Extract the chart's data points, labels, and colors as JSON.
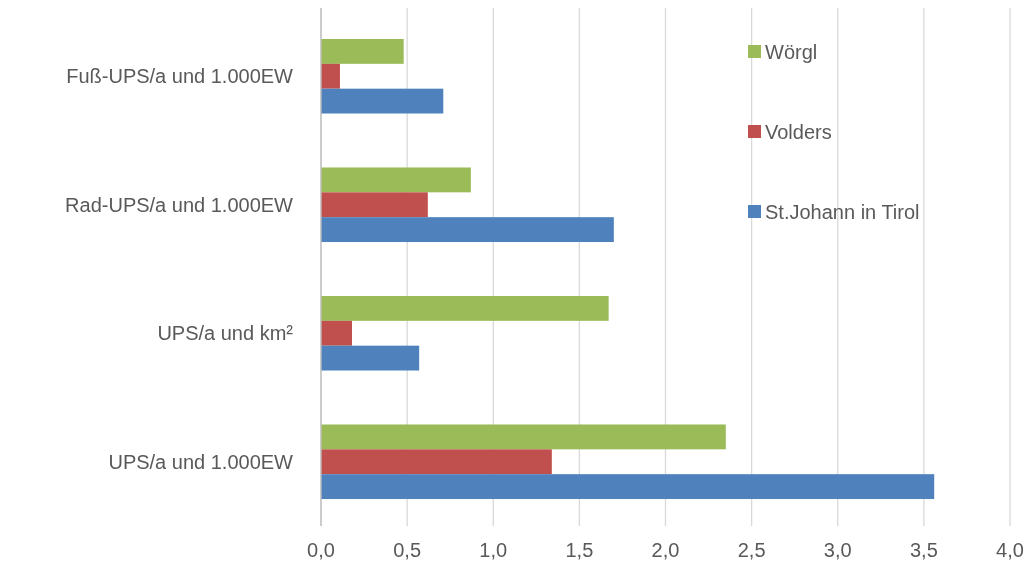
{
  "chart_data": {
    "type": "bar",
    "orientation": "horizontal",
    "categories": [
      "Fuß-UPS/a und 1.000EW",
      "Rad-UPS/a und 1.000EW",
      "UPS/a und km²",
      "UPS/a und 1.000EW"
    ],
    "series": [
      {
        "name": "Wörgl",
        "color": "#9bbb59",
        "values": [
          0.48,
          0.87,
          1.67,
          2.35
        ]
      },
      {
        "name": "Volders",
        "color": "#c0504d",
        "values": [
          0.11,
          0.62,
          0.18,
          1.34
        ]
      },
      {
        "name": "St.Johann in Tirol",
        "color": "#4f81bd",
        "values": [
          0.71,
          1.7,
          0.57,
          3.56
        ]
      }
    ],
    "xlim": [
      0,
      4
    ],
    "xticks": [
      {
        "value": 0,
        "label": "0,0"
      },
      {
        "value": 0.5,
        "label": "0,5"
      },
      {
        "value": 1,
        "label": "1,0"
      },
      {
        "value": 1.5,
        "label": "1,5"
      },
      {
        "value": 2,
        "label": "2,0"
      },
      {
        "value": 2.5,
        "label": "2,5"
      },
      {
        "value": 3,
        "label": "3,0"
      },
      {
        "value": 3.5,
        "label": "3,5"
      },
      {
        "value": 4,
        "label": "4,0"
      }
    ],
    "grid": "x",
    "legend": "top right"
  }
}
